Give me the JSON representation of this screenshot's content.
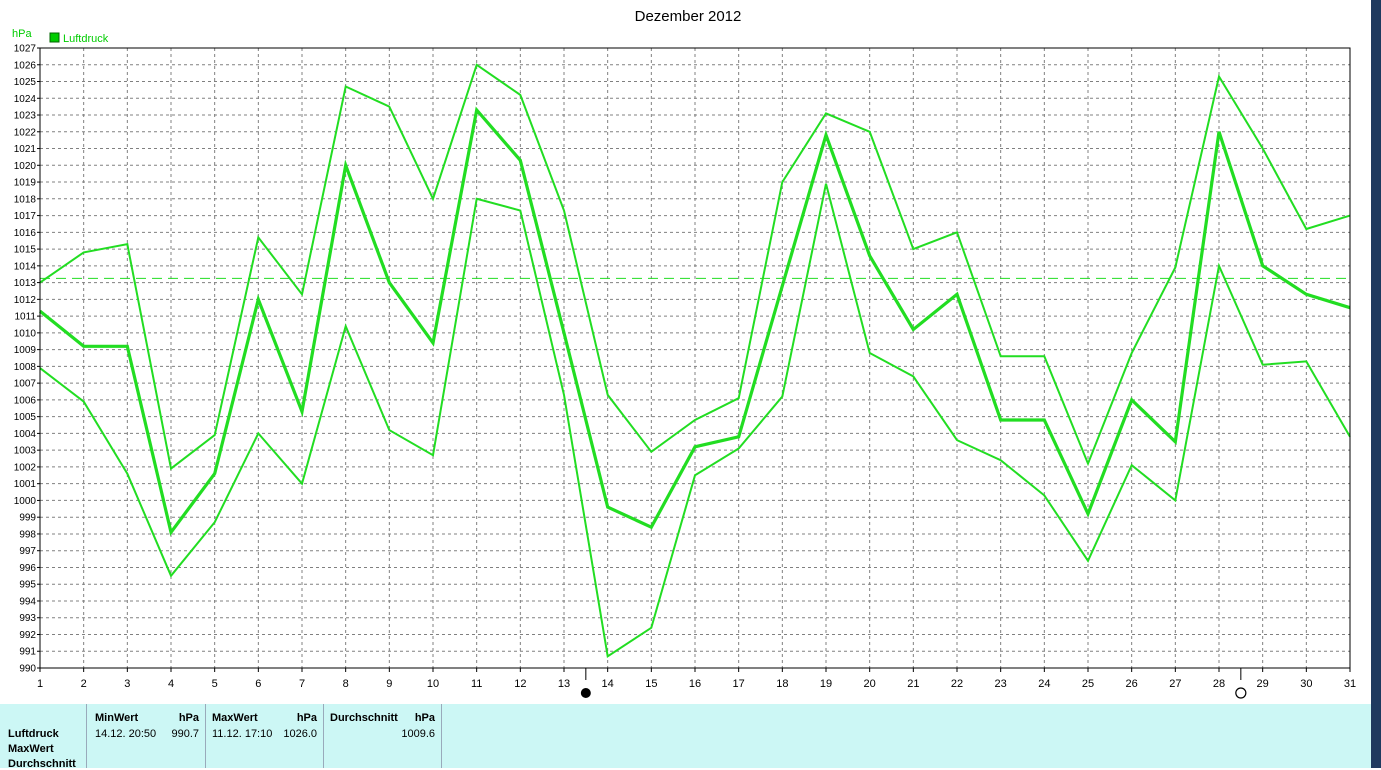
{
  "chart_data": {
    "type": "line",
    "title": "Dezember 2012",
    "ylabel": "hPa",
    "legend": "Luftdruck",
    "legend_placement": "top-left",
    "ylim": [
      990,
      1027
    ],
    "xlim": [
      1,
      31
    ],
    "grid": true,
    "x": [
      1,
      2,
      3,
      4,
      5,
      6,
      7,
      8,
      9,
      10,
      11,
      12,
      13,
      14,
      15,
      16,
      17,
      18,
      19,
      20,
      21,
      22,
      23,
      24,
      25,
      26,
      27,
      28,
      29,
      30,
      31
    ],
    "x_tick_labels": [
      "1",
      "2",
      "3",
      "4",
      "5",
      "6",
      "7",
      "8",
      "9",
      "10",
      "11",
      "12",
      "13",
      "14",
      "15",
      "16",
      "17",
      "18",
      "19",
      "20",
      "21",
      "22",
      "23",
      "24",
      "25",
      "26",
      "27",
      "28",
      "29",
      "30",
      "31"
    ],
    "y_tick_labels": [
      "990",
      "991",
      "992",
      "993",
      "994",
      "995",
      "996",
      "997",
      "998",
      "999",
      "1000",
      "1001",
      "1002",
      "1003",
      "1004",
      "1005",
      "1006",
      "1007",
      "1008",
      "1009",
      "1010",
      "1011",
      "1012",
      "1013",
      "1014",
      "1015",
      "1016",
      "1017",
      "1018",
      "1019",
      "1020",
      "1021",
      "1022",
      "1023",
      "1024",
      "1025",
      "1026",
      "1027"
    ],
    "series": [
      {
        "name": "Luftdruck",
        "role": "mean",
        "color": "#22dd22",
        "values": [
          1011.3,
          1009.2,
          1009.2,
          998.1,
          1001.6,
          1012.0,
          1005.3,
          1020.0,
          1013.0,
          1009.4,
          1023.3,
          1020.3,
          1010.0,
          999.6,
          998.4,
          1003.2,
          1003.8,
          1012.8,
          1021.8,
          1014.6,
          1010.2,
          1012.3,
          1004.8,
          1004.8,
          999.2,
          1006.0,
          1003.5,
          1022.0,
          1014.0,
          1012.3,
          1011.5
        ]
      },
      {
        "role": "max",
        "color": "#22dd22",
        "values": [
          1013.0,
          1014.8,
          1015.3,
          1001.9,
          1003.9,
          1015.7,
          1012.3,
          1024.7,
          1023.5,
          1018.0,
          1026.0,
          1024.2,
          1017.3,
          1006.3,
          1002.9,
          1004.8,
          1006.1,
          1019.0,
          1023.1,
          1022.0,
          1015.0,
          1016.0,
          1008.6,
          1008.6,
          1002.2,
          1008.8,
          1013.9,
          1025.3,
          1021.0,
          1016.2,
          1017.0
        ]
      },
      {
        "role": "min",
        "color": "#22dd22",
        "values": [
          1007.9,
          1005.9,
          1001.6,
          995.5,
          998.7,
          1004.0,
          1001.0,
          1010.4,
          1004.2,
          1002.7,
          1018.0,
          1017.3,
          1006.3,
          990.7,
          992.4,
          1001.5,
          1003.1,
          1006.2,
          1018.9,
          1008.8,
          1007.4,
          1003.6,
          1002.4,
          1000.3,
          996.4,
          1002.1,
          1000.0,
          1014.0,
          1008.1,
          1008.3,
          1003.8
        ]
      }
    ],
    "reference_line": {
      "value": 1013.25,
      "style": "dashed",
      "color": "#22dd22"
    },
    "moon_markers": [
      {
        "day": 13.5,
        "phase": "new-moon"
      },
      {
        "day": 28.5,
        "phase": "full-moon"
      }
    ],
    "colors": {
      "line": "#22dd22",
      "grid": "#808080",
      "legend_swatch": "#00cc00"
    }
  },
  "stats": {
    "row_labels": [
      "Luftdruck",
      "MaxWert",
      "Durchschnitt"
    ],
    "columns": [
      {
        "header": "MinWert",
        "unit": "hPa",
        "datetime": "14.12.  20:50",
        "value": "990.7"
      },
      {
        "header": "MaxWert",
        "unit": "hPa",
        "datetime": "11.12.  17:10",
        "value": "1026.0"
      },
      {
        "header": "Durchschnitt",
        "unit": "hPa",
        "datetime": "",
        "value": "1009.6"
      }
    ],
    "background": "#ccf7f5"
  }
}
